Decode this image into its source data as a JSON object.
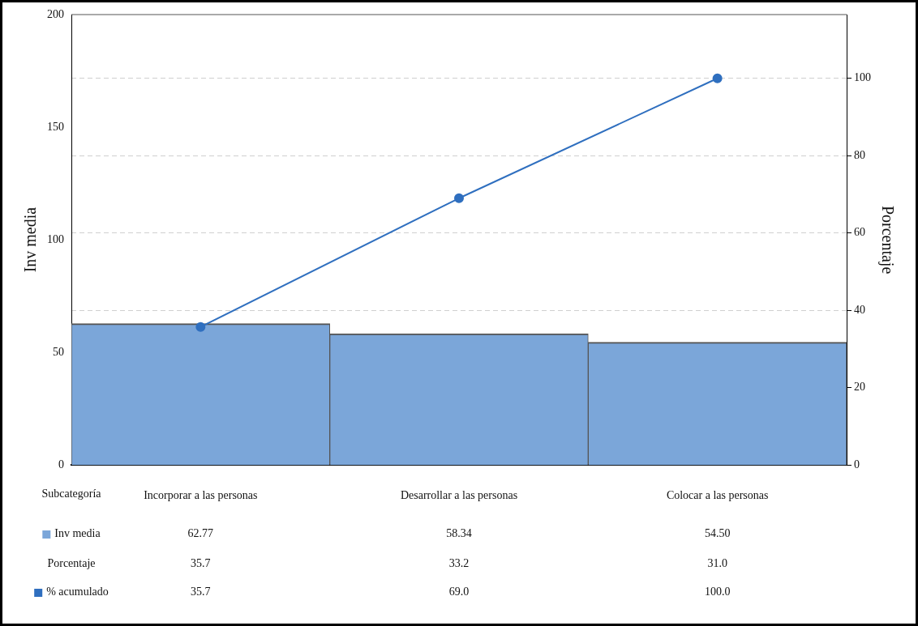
{
  "chart_data": {
    "type": "bar",
    "xlabel": "Subcategoría",
    "ylabel": "Inv media",
    "y2label": "Porcentaje",
    "categories": [
      "Incorporar a las personas",
      "Desarrollar a las personas",
      "Colocar a las personas"
    ],
    "series": [
      {
        "name": "Inv media",
        "color": "#7ba6d9",
        "values": [
          62.77,
          58.34,
          54.5
        ],
        "value_labels": [
          "62.77",
          "58.34",
          "54.50"
        ]
      },
      {
        "name": "% acumulado",
        "type": "line",
        "axis": "y2",
        "color": "#2f6fbf",
        "marker": "circle",
        "values": [
          35.7,
          69.0,
          100.0
        ],
        "value_labels": [
          "35.7",
          "69.0",
          "100.0"
        ]
      }
    ],
    "annotations": [
      "35.7",
      "33.2",
      "31.0"
    ],
    "ylim": [
      0,
      200
    ],
    "yticks": [
      0,
      50,
      100,
      150,
      200
    ],
    "y2lim": [
      0,
      116.5
    ],
    "y2ticks": [
      0,
      20,
      40,
      60,
      80,
      100
    ],
    "grid": "y",
    "legend": "bottom left"
  }
}
